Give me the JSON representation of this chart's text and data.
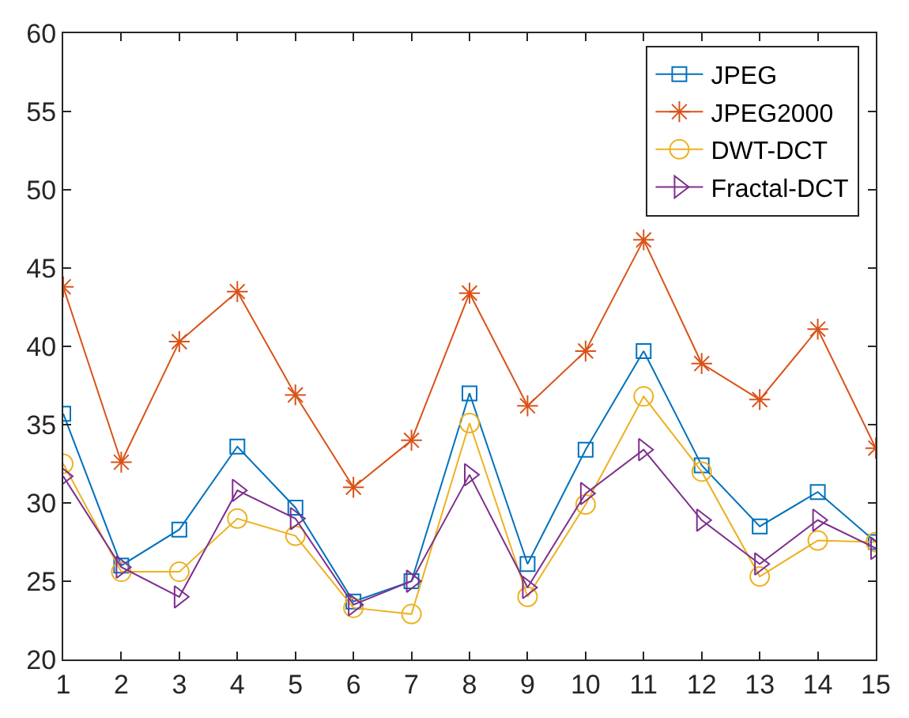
{
  "chart_data": {
    "type": "line",
    "x": [
      1,
      2,
      3,
      4,
      5,
      6,
      7,
      8,
      9,
      10,
      11,
      12,
      13,
      14,
      15
    ],
    "xlim": [
      1,
      15
    ],
    "xticks": [
      1,
      2,
      3,
      4,
      5,
      6,
      7,
      8,
      9,
      10,
      11,
      12,
      13,
      14,
      15
    ],
    "ylim": [
      20,
      60
    ],
    "yticks": [
      20,
      25,
      30,
      35,
      40,
      45,
      50,
      55,
      60
    ],
    "legend": "top right",
    "series": [
      {
        "name": "JPEG",
        "color": "#0072bd",
        "marker": "square",
        "values": [
          35.7,
          26,
          28.3,
          33.6,
          29.7,
          23.7,
          25,
          37,
          26.1,
          33.4,
          39.7,
          32.4,
          28.5,
          30.7,
          27.5
        ]
      },
      {
        "name": "JPEG2000",
        "color": "#d95319",
        "marker": "cross",
        "values": [
          43.8,
          32.6,
          40.3,
          43.5,
          36.9,
          31,
          34,
          43.4,
          36.2,
          39.7,
          46.8,
          38.9,
          36.6,
          41.1,
          33.5
        ]
      },
      {
        "name": "DWT-DCT",
        "color": "#edb120",
        "marker": "circle",
        "values": [
          32.5,
          25.6,
          25.6,
          29,
          27.9,
          23.3,
          22.9,
          35.1,
          24,
          29.9,
          36.8,
          32,
          25.3,
          27.6,
          27.5
        ]
      },
      {
        "name": "Fractal-DCT",
        "color": "#7e2f8e",
        "marker": "triangle",
        "values": [
          31.7,
          25.9,
          24,
          30.8,
          29,
          23.5,
          25,
          31.8,
          24.6,
          30.6,
          33.4,
          28.9,
          26.1,
          28.9,
          27.1
        ]
      }
    ]
  }
}
